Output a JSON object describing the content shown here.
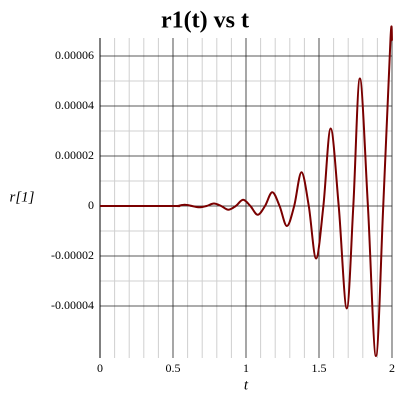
{
  "chart_data": {
    "type": "line",
    "title": "r1(t) vs t",
    "x_label": "t",
    "y_label": "r[1]",
    "x": [
      0,
      0.5,
      0.53,
      0.58,
      0.63,
      0.68,
      0.73,
      0.78,
      0.83,
      0.88,
      0.93,
      0.98,
      1.03,
      1.08,
      1.13,
      1.18,
      1.23,
      1.28,
      1.33,
      1.38,
      1.43,
      1.48,
      1.53,
      1.58,
      1.635,
      1.69,
      1.735,
      1.78,
      1.835,
      1.89,
      1.94,
      1.99,
      2.0
    ],
    "values": [
      0,
      0,
      0,
      5e-07,
      0,
      -5e-07,
      0,
      1e-06,
      0,
      -1.5e-06,
      0,
      2.5e-06,
      0,
      -3.5e-06,
      0,
      5.5e-06,
      0,
      -8e-06,
      0,
      1.35e-05,
      0,
      -2.1e-05,
      0,
      3.1e-05,
      0,
      -4.1e-05,
      0,
      5.1e-05,
      0,
      -6e-05,
      0,
      6.72e-05,
      6.6e-05
    ],
    "color": "#7a0000",
    "xlim": [
      0,
      2
    ],
    "xticks": [
      0,
      0.5,
      1,
      1.5,
      2
    ],
    "ylim": [
      -6.08e-05,
      6.72e-05
    ],
    "yticks": [
      {
        "value": 6e-05,
        "label": "0.00006"
      },
      {
        "value": 4e-05,
        "label": "0.00004"
      },
      {
        "value": 2e-05,
        "label": "0.00002"
      },
      0,
      {
        "value": -2e-05,
        "label": "-0.00002"
      },
      {
        "value": -4e-05,
        "label": "-0.00004"
      }
    ],
    "grid": true
  }
}
